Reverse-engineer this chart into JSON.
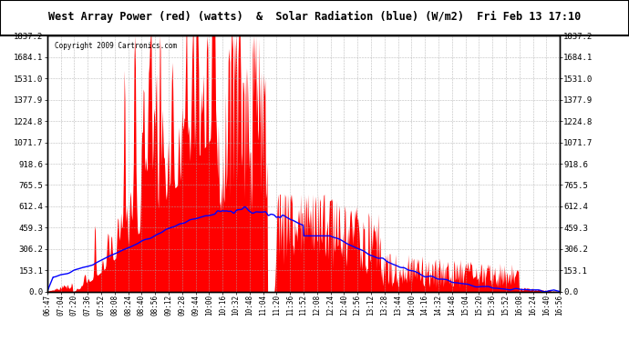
{
  "title": "West Array Power (red) (watts)  &  Solar Radiation (blue) (W/m2)  Fri Feb 13 17:10",
  "copyright": "Copyright 2009 Cartronics.com",
  "ymin": 0.0,
  "ymax": 1837.2,
  "yticks": [
    0.0,
    153.1,
    306.2,
    459.3,
    612.4,
    765.5,
    918.6,
    1071.7,
    1224.8,
    1377.9,
    1531.0,
    1684.1,
    1837.2
  ],
  "bg_color": "#ffffff",
  "grid_color": "#aaaaaa",
  "red_color": "#ff0000",
  "blue_color": "#0000ff",
  "border_color": "#000000",
  "xtick_labels": [
    "06:47",
    "07:04",
    "07:20",
    "07:36",
    "07:52",
    "08:08",
    "08:24",
    "08:40",
    "08:56",
    "09:12",
    "09:28",
    "09:44",
    "10:00",
    "10:16",
    "10:32",
    "10:48",
    "11:04",
    "11:20",
    "11:36",
    "11:52",
    "12:08",
    "12:24",
    "12:40",
    "12:56",
    "13:12",
    "13:28",
    "13:44",
    "14:00",
    "14:16",
    "14:32",
    "14:48",
    "15:04",
    "15:20",
    "15:36",
    "15:52",
    "16:08",
    "16:24",
    "16:40",
    "16:56"
  ],
  "n_points": 780
}
